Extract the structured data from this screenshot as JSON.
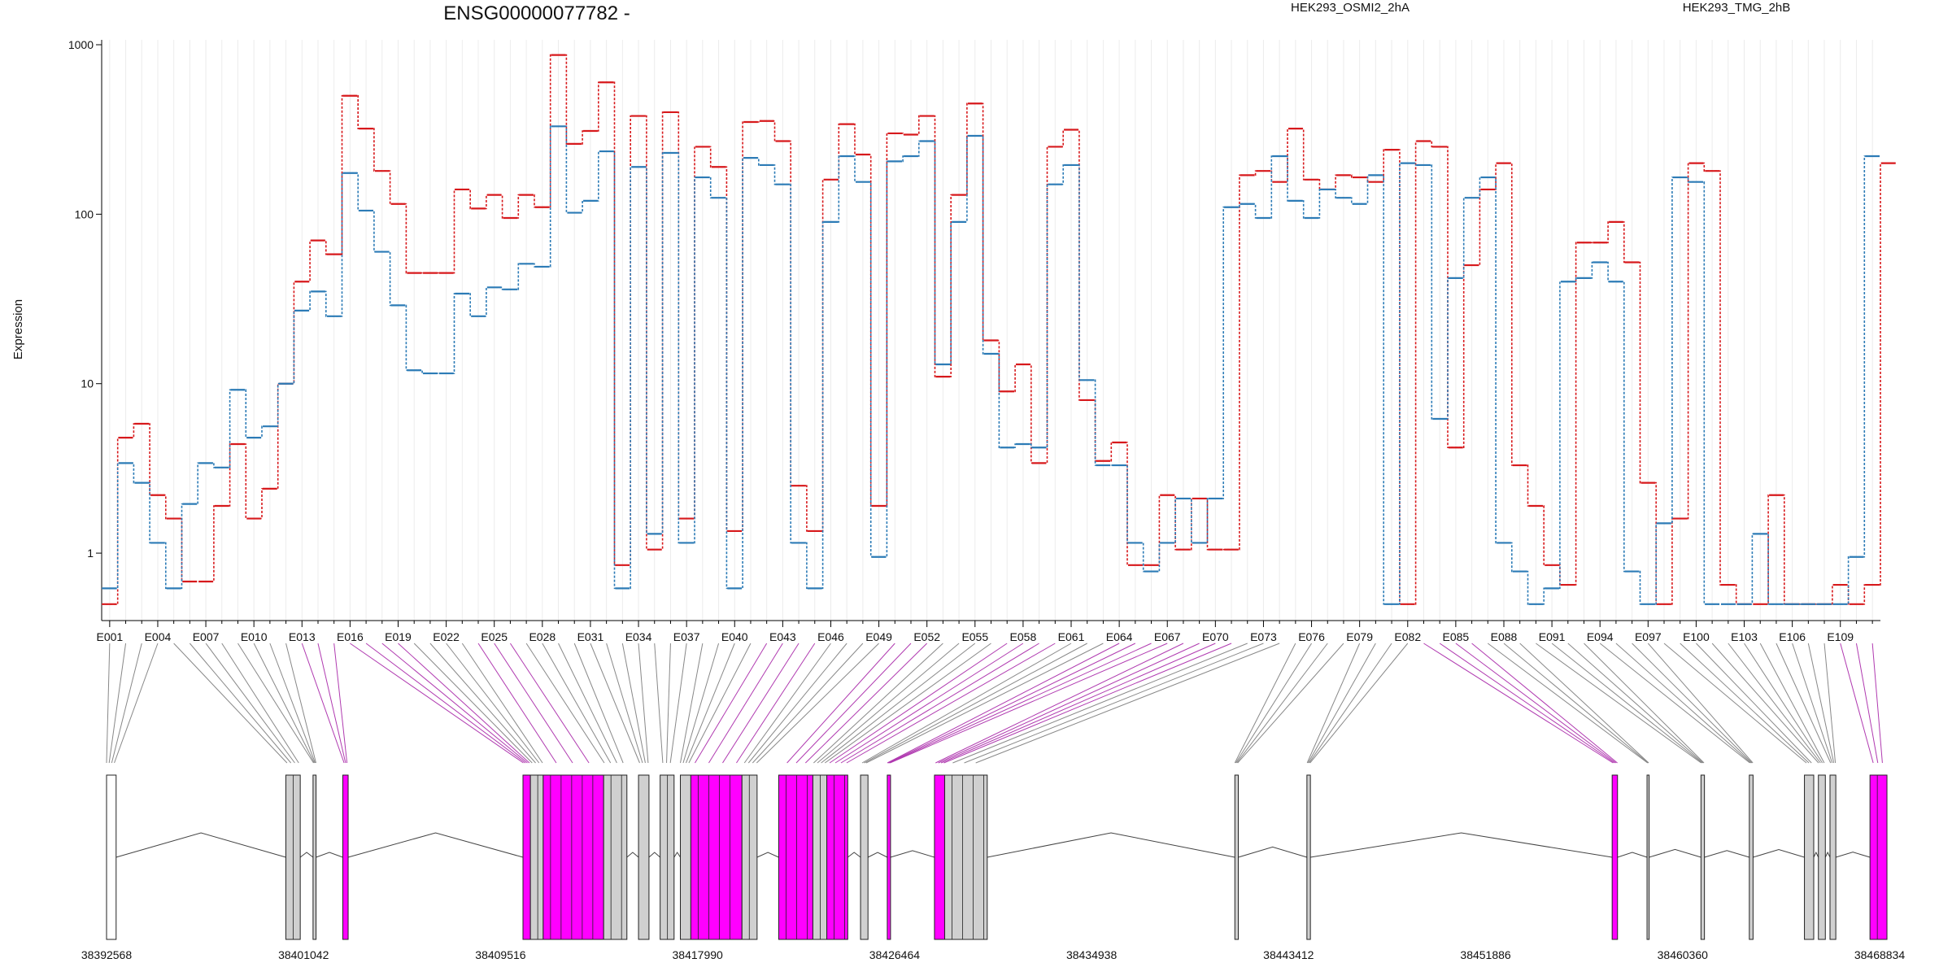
{
  "title": "ENSG00000077782 -",
  "ylabel": "Expression",
  "legend": [
    {
      "name": "HEK293_OSMI2_2hA",
      "color": "#d7191c"
    },
    {
      "name": "HEK293_TMG_2hB",
      "color": "#2c7bb6"
    }
  ],
  "colors": {
    "series_a": "#d7191c",
    "series_b": "#2c7bb6",
    "exon_default": "#d0d0d0",
    "exon_highlight": "#ff00ff",
    "connector_default": "#888888",
    "connector_highlight": "#b03ab0"
  },
  "chart_data": {
    "type": "line",
    "yscale": "log",
    "ylim": [
      0.4,
      1000
    ],
    "y_ticks": [
      "1000",
      "100",
      "10",
      "1"
    ],
    "y_tick_values": [
      1000,
      100,
      10,
      1
    ],
    "x_ticks": [
      "E001",
      "E004",
      "E007",
      "E010",
      "E013",
      "E016",
      "E019",
      "E022",
      "E025",
      "E028",
      "E031",
      "E034",
      "E037",
      "E040",
      "E043",
      "E046",
      "E049",
      "E052",
      "E055",
      "E058",
      "E061",
      "E064",
      "E067",
      "E070",
      "E073",
      "E076",
      "E079",
      "E082",
      "E085",
      "E088",
      "E091",
      "E094",
      "E097",
      "E100",
      "E103",
      "E106",
      "E109"
    ],
    "exons": [
      "E001",
      "E002",
      "E003",
      "E004",
      "E005",
      "E006",
      "E007",
      "E008",
      "E009",
      "E010",
      "E011",
      "E012",
      "E013",
      "E014",
      "E015",
      "E016",
      "E017",
      "E018",
      "E019",
      "E020",
      "E021",
      "E022",
      "E023",
      "E024",
      "E025",
      "E026",
      "E027",
      "E028",
      "E029",
      "E030",
      "E031",
      "E032",
      "E033",
      "E034",
      "E035",
      "E036",
      "E037",
      "E038",
      "E039",
      "E040",
      "E041",
      "E042",
      "E043",
      "E044",
      "E045",
      "E046",
      "E047",
      "E048",
      "E049",
      "E050",
      "E051",
      "E052",
      "E053",
      "E054",
      "E055",
      "E056",
      "E057",
      "E058",
      "E059",
      "E060",
      "E061",
      "E062",
      "E063",
      "E064",
      "E065",
      "E066",
      "E067",
      "E068",
      "E069",
      "E070",
      "E071",
      "E072",
      "E073",
      "E074",
      "E075",
      "E076",
      "E077",
      "E078",
      "E079",
      "E080",
      "E081",
      "E082",
      "E083",
      "E084",
      "E085",
      "E086",
      "E087",
      "E088",
      "E089",
      "E090",
      "E091",
      "E092",
      "E093",
      "E094",
      "E095",
      "E096",
      "E097",
      "E098",
      "E099",
      "E100",
      "E101",
      "E102",
      "E103",
      "E104",
      "E105",
      "E106",
      "E107",
      "E108",
      "E109",
      "E110",
      "E111"
    ],
    "series": [
      {
        "name": "HEK293_OSMI2_2hA",
        "values": [
          0.5,
          4.8,
          5.8,
          2.2,
          1.6,
          0.68,
          0.68,
          1.9,
          4.4,
          1.6,
          2.4,
          10,
          40,
          70,
          58,
          500,
          320,
          180,
          115,
          45,
          45,
          45,
          140,
          108,
          130,
          95,
          130,
          110,
          870,
          260,
          310,
          600,
          0.85,
          380,
          1.05,
          400,
          1.6,
          250,
          190,
          1.35,
          350,
          355,
          270,
          2.5,
          1.35,
          160,
          340,
          225,
          1.9,
          300,
          295,
          380,
          11,
          130,
          450,
          18,
          9,
          13,
          3.4,
          250,
          315,
          8,
          3.5,
          4.5,
          0.85,
          0.85,
          2.2,
          1.05,
          2.1,
          1.05,
          1.05,
          170,
          180,
          155,
          320,
          160,
          140,
          170,
          165,
          155,
          240,
          0.5,
          270,
          250,
          4.2,
          50,
          140,
          200,
          3.3,
          1.9,
          0.85,
          0.65,
          68,
          68,
          90,
          52,
          2.6,
          0.5,
          1.6,
          200,
          180,
          0.65,
          0.5,
          0.5,
          2.2,
          0.5,
          0.5,
          0.5,
          0.65,
          0.5,
          0.65,
          200
        ]
      },
      {
        "name": "HEK293_TMG_2hB",
        "values": [
          0.62,
          3.4,
          2.6,
          1.15,
          0.62,
          1.95,
          3.4,
          3.2,
          9.2,
          4.8,
          5.6,
          10,
          27,
          35,
          25,
          175,
          105,
          60,
          29,
          12,
          11.5,
          11.5,
          34,
          25,
          37,
          36,
          51,
          49,
          330,
          102,
          120,
          235,
          0.62,
          190,
          1.3,
          230,
          1.15,
          165,
          125,
          0.62,
          215,
          195,
          150,
          1.15,
          0.62,
          90,
          220,
          155,
          0.95,
          205,
          220,
          270,
          13,
          90,
          290,
          15,
          4.2,
          4.4,
          4.2,
          150,
          195,
          10.5,
          3.3,
          3.3,
          1.15,
          0.78,
          1.15,
          2.1,
          1.15,
          2.1,
          110,
          115,
          95,
          220,
          120,
          95,
          140,
          125,
          115,
          170,
          0.5,
          200,
          195,
          6.2,
          42,
          125,
          165,
          1.15,
          0.78,
          0.5,
          0.62,
          40,
          42,
          52,
          40,
          0.78,
          0.5,
          1.5,
          165,
          155,
          0.5,
          0.5,
          0.5,
          1.3,
          0.5,
          0.5,
          0.5,
          0.5,
          0.5,
          0.95,
          220
        ]
      }
    ]
  },
  "gene_model": {
    "coordinate_labels": [
      "38392568",
      "38401042",
      "38409516",
      "38417990",
      "38426464",
      "38434938",
      "38443412",
      "38451886",
      "38460360",
      "38468834"
    ],
    "coordinate_values": [
      38392568,
      38401042,
      38409516,
      38417990,
      38426464,
      38434938,
      38443412,
      38451886,
      38460360,
      38468834
    ],
    "exon_segments": [
      {
        "start": 38392568,
        "end": 38392980,
        "highlight": false,
        "outline_only": true
      },
      {
        "start": 38400280,
        "end": 38400900,
        "highlight": false
      },
      {
        "start": 38401450,
        "end": 38401580,
        "highlight": false
      },
      {
        "start": 38402730,
        "end": 38402960,
        "highlight": true
      },
      {
        "start": 38410480,
        "end": 38410800,
        "highlight": true
      },
      {
        "start": 38410800,
        "end": 38411350,
        "highlight": false
      },
      {
        "start": 38411350,
        "end": 38413950,
        "highlight": true
      },
      {
        "start": 38413950,
        "end": 38414950,
        "highlight": false
      },
      {
        "start": 38415450,
        "end": 38415900,
        "highlight": false
      },
      {
        "start": 38416380,
        "end": 38416980,
        "highlight": false
      },
      {
        "start": 38417250,
        "end": 38417700,
        "highlight": false
      },
      {
        "start": 38417700,
        "end": 38419900,
        "highlight": true
      },
      {
        "start": 38419900,
        "end": 38420550,
        "highlight": false
      },
      {
        "start": 38421480,
        "end": 38422950,
        "highlight": true
      },
      {
        "start": 38422950,
        "end": 38423550,
        "highlight": false
      },
      {
        "start": 38423550,
        "end": 38424450,
        "highlight": true
      },
      {
        "start": 38425000,
        "end": 38425320,
        "highlight": false
      },
      {
        "start": 38426150,
        "end": 38426290,
        "highlight": true
      },
      {
        "start": 38428180,
        "end": 38428620,
        "highlight": true
      },
      {
        "start": 38428620,
        "end": 38430450,
        "highlight": false
      },
      {
        "start": 38441100,
        "end": 38441250,
        "highlight": false
      },
      {
        "start": 38444200,
        "end": 38444350,
        "highlight": false
      },
      {
        "start": 38457330,
        "end": 38457560,
        "highlight": true
      },
      {
        "start": 38458830,
        "end": 38458920,
        "highlight": false
      },
      {
        "start": 38461150,
        "end": 38461300,
        "highlight": false
      },
      {
        "start": 38463230,
        "end": 38463390,
        "highlight": false
      },
      {
        "start": 38465600,
        "end": 38466000,
        "highlight": false
      },
      {
        "start": 38466200,
        "end": 38466500,
        "highlight": false
      },
      {
        "start": 38466700,
        "end": 38466950,
        "highlight": false
      },
      {
        "start": 38468420,
        "end": 38469150,
        "highlight": true
      }
    ]
  }
}
